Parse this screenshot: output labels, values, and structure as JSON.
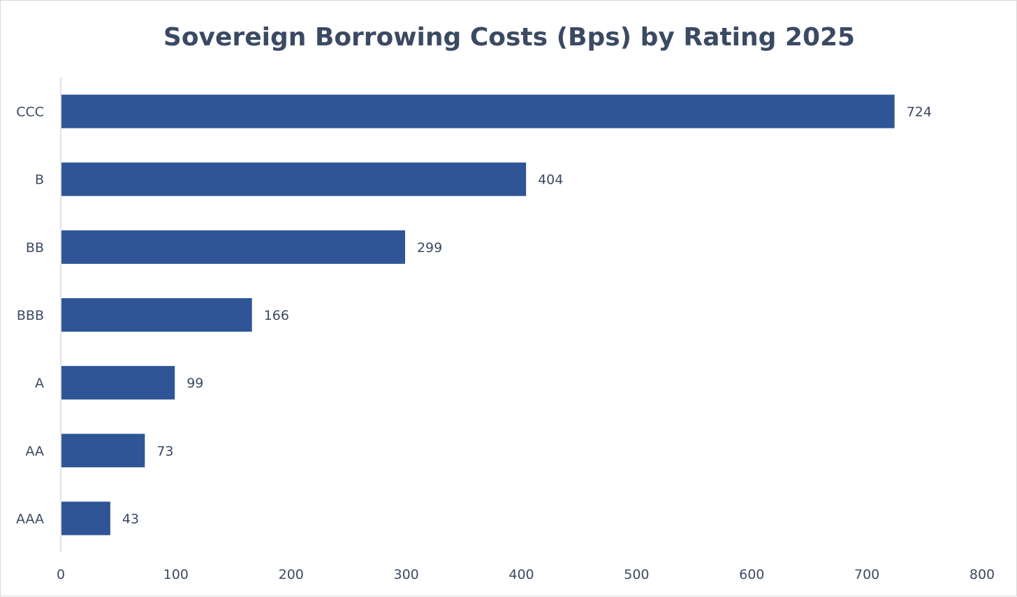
{
  "colors": {
    "bar": "#2f5597",
    "text": "#3b4a63",
    "axis": "#d9d9d9"
  },
  "chart_data": {
    "type": "bar",
    "orientation": "horizontal",
    "title": "Sovereign Borrowing Costs (Bps) by Rating 2025",
    "categories": [
      "CCC",
      "B",
      "BB",
      "BBB",
      "A",
      "AA",
      "AAA"
    ],
    "values": [
      724,
      404,
      299,
      166,
      99,
      73,
      43
    ],
    "data_labels": [
      "724",
      "404",
      "299",
      "166",
      "99",
      "73",
      "43"
    ],
    "xlim": [
      0,
      800
    ],
    "x_ticks": [
      0,
      100,
      200,
      300,
      400,
      500,
      600,
      700,
      800
    ],
    "x_tick_labels": [
      "0",
      "100",
      "200",
      "300",
      "400",
      "500",
      "600",
      "700",
      "800"
    ],
    "grid": false,
    "legend": "none"
  }
}
